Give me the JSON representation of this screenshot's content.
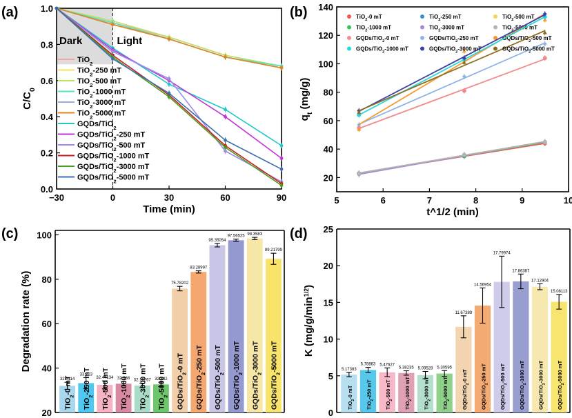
{
  "chart_data": [
    {
      "panel": "(a)",
      "type": "line",
      "xlabel": "Time (min)",
      "ylabel": "C/C0",
      "xlim": [
        -30,
        90
      ],
      "ylim": [
        0,
        1
      ],
      "xticks": [
        -30,
        0,
        30,
        60,
        90
      ],
      "yticks": [
        0.0,
        0.2,
        0.4,
        0.6,
        0.8,
        1.0
      ],
      "annotations": [
        "Dark",
        "Light"
      ],
      "x": [
        -30,
        0,
        30,
        60,
        90
      ],
      "series": [
        {
          "name": "TiO2",
          "color": "#f4a9a0",
          "values": [
            1.0,
            0.92,
            0.84,
            0.74,
            0.68
          ]
        },
        {
          "name": "TiO2-250 mT",
          "color": "#f5e663",
          "values": [
            1.0,
            0.92,
            0.83,
            0.73,
            0.67
          ]
        },
        {
          "name": "TiO2-500 mT",
          "color": "#b7e36a",
          "values": [
            1.0,
            0.93,
            0.84,
            0.74,
            0.68
          ]
        },
        {
          "name": "TiO2-1000 mT",
          "color": "#57e0c0",
          "values": [
            1.0,
            0.92,
            0.83,
            0.73,
            0.68
          ]
        },
        {
          "name": "TiO2-3000 mT",
          "color": "#9aa8e6",
          "values": [
            1.0,
            0.91,
            0.83,
            0.73,
            0.67
          ]
        },
        {
          "name": "TiO2-5000 mT",
          "color": "#e0861e",
          "values": [
            1.0,
            0.91,
            0.83,
            0.73,
            0.67
          ]
        },
        {
          "name": "GQDs/TiO2",
          "color": "#1fc9c9",
          "values": [
            1.0,
            0.78,
            0.58,
            0.44,
            0.24
          ]
        },
        {
          "name": "GQDs/TiO2-250 mT",
          "color": "#c333d6",
          "values": [
            1.0,
            0.77,
            0.6,
            0.4,
            0.17
          ]
        },
        {
          "name": "GQDs/TiO2-500 mT",
          "color": "#9a8ce8",
          "values": [
            1.0,
            0.76,
            0.61,
            0.21,
            0.04
          ]
        },
        {
          "name": "GQDs/TiO2-1000 mT",
          "color": "#c41e1e",
          "values": [
            1.0,
            0.74,
            0.52,
            0.24,
            0.03
          ]
        },
        {
          "name": "GQDs/TiO2-3000 mT",
          "color": "#4b9c1e",
          "values": [
            1.0,
            0.73,
            0.51,
            0.23,
            0.02
          ]
        },
        {
          "name": "GQDs/TiO2-5000 mT",
          "color": "#3d6fae",
          "values": [
            1.0,
            0.72,
            0.53,
            0.27,
            0.11
          ]
        }
      ]
    },
    {
      "panel": "(b)",
      "type": "scatter",
      "xlabel": "t^1/2 (min)",
      "ylabel": "qt (mg/g)",
      "xlim": [
        5,
        10
      ],
      "ylim": [
        10,
        140
      ],
      "xticks": [
        5,
        6,
        7,
        8,
        9,
        10
      ],
      "yticks": [
        20,
        40,
        60,
        80,
        100,
        120,
        140
      ],
      "x": [
        5.48,
        7.75,
        9.49
      ],
      "series": [
        {
          "name": "TiO2-0 mT",
          "color": "#f05a5a",
          "values": [
            23,
            35,
            44
          ]
        },
        {
          "name": "TiO2-250 mT",
          "color": "#3a8fd0",
          "values": [
            23,
            36,
            45
          ]
        },
        {
          "name": "TiO2-500 mT",
          "color": "#f5d35a",
          "values": [
            23,
            36,
            45
          ]
        },
        {
          "name": "TiO2-1000 mT",
          "color": "#3cc25a",
          "values": [
            23,
            35,
            45
          ]
        },
        {
          "name": "TiO2-3000 mT",
          "color": "#a78bd6",
          "values": [
            22,
            36,
            45
          ]
        },
        {
          "name": "TiO2-5000 mT",
          "color": "#b4b4b4",
          "values": [
            23,
            36,
            45
          ]
        },
        {
          "name": "GQDs/TiO2-0 mT",
          "color": "#f38b8b",
          "values": [
            55,
            81,
            104
          ]
        },
        {
          "name": "GQDs/TiO2-250 mT",
          "color": "#8fb3e8",
          "values": [
            57,
            91,
            114
          ]
        },
        {
          "name": "GQDs/TiO2-500 mT",
          "color": "#f59a2e",
          "values": [
            54,
            109,
            131
          ]
        },
        {
          "name": "GQDs/TiO2-1000 mT",
          "color": "#2ad6d6",
          "values": [
            64,
            103,
            133
          ]
        },
        {
          "name": "GQDs/TiO2-3000 mT",
          "color": "#3d3fa8",
          "values": [
            67,
            104,
            135
          ]
        },
        {
          "name": "GQDs/TiO2-5000 mT",
          "color": "#8a6d1e",
          "values": [
            66,
            101,
            122
          ]
        }
      ]
    },
    {
      "panel": "(c)",
      "type": "bar",
      "xlabel": "",
      "ylabel": "Degradation rate (%)",
      "ylim": [
        20,
        102
      ],
      "yticks": [
        20,
        40,
        60,
        80,
        100
      ],
      "categories": [
        "TiO2-0 mT",
        "TiO2-250 mT",
        "TiO2-500 mT",
        "TiO2-1000 mT",
        "TiO2-3000 mT",
        "TiO2-5000 mT",
        "GQDs/TiO2-0 mT",
        "GQDs/TiO2-250 mT",
        "GQDs/TiO2-500 mT",
        "GQDs/TiO2-1000 mT",
        "GQDs/TiO2-3000 mT",
        "GQDs/TiO2-5000 mT"
      ],
      "values": [
        32.0114,
        33.223,
        32.44134,
        32.968,
        32.16267,
        32.642,
        75.78202,
        83.28997,
        95.35054,
        97.56525,
        98.3583,
        89.21799
      ],
      "labels": [
        "32.0114",
        "33.223",
        "32.44134",
        "32.968",
        "32.16267",
        "32.642",
        "75.78202",
        "83.28997",
        "95.35054",
        "97.56525",
        "98.3583",
        "89.21799"
      ],
      "errors": [
        1.6,
        2.5,
        1.8,
        1.0,
        1.0,
        1.0,
        1.0,
        0.5,
        0.8,
        0.5,
        0.5,
        2.5
      ],
      "colors": [
        "#a9d8ee",
        "#4fc7ee",
        "#f6b3c3",
        "#d98aa0",
        "#a9dcc6",
        "#6fc56b",
        "#f2cfa8",
        "#f4a870",
        "#c8c5e6",
        "#9499cf",
        "#f6e7a8",
        "#f8e36b"
      ]
    },
    {
      "panel": "(d)",
      "type": "bar",
      "xlabel": "",
      "ylabel": "K (mg/g/min1/2)",
      "ylim": [
        0,
        25
      ],
      "yticks": [
        0,
        5,
        10,
        15,
        20,
        25
      ],
      "categories": [
        "TiO2-0 mT",
        "TiO2-250 mT",
        "TiO2-500 mT",
        "TiO2-1000 mT",
        "TiO2-3000 mT",
        "TiO2-5000 mT",
        "GQDs/TiO2-0 mT",
        "GQDs/TiO2-250 mT",
        "GQDs/TiO2-500 mT",
        "GQDs/TiO2-1000 mT",
        "GQDs/TiO2-3000 mT",
        "GQDs/TiO2-5000 mT"
      ],
      "values": [
        5.17383,
        5.78863,
        5.47627,
        5.38235,
        5.09528,
        5.30595,
        11.67389,
        14.56954,
        17.79974,
        17.86387,
        17.12904,
        15.08113
      ],
      "labels": [
        "5.17383",
        "5.78863",
        "5.47627",
        "5.38235",
        "5.09528",
        "5.30595",
        "11.67389",
        "14.56954",
        "17.79974",
        "17.86387",
        "17.12904",
        "15.08113"
      ],
      "errors": [
        0.3,
        0.35,
        0.6,
        0.3,
        0.5,
        0.4,
        1.5,
        2.4,
        3.5,
        1.0,
        0.4,
        1.0
      ],
      "colors": [
        "#b7dff0",
        "#56c8ec",
        "#f7b8c8",
        "#dfa0b4",
        "#b4dfcc",
        "#8fd08a",
        "#f3d5b2",
        "#f4ab73",
        "#cfcbea",
        "#9a9fd2",
        "#f6e8ae",
        "#f8e56f"
      ]
    }
  ]
}
